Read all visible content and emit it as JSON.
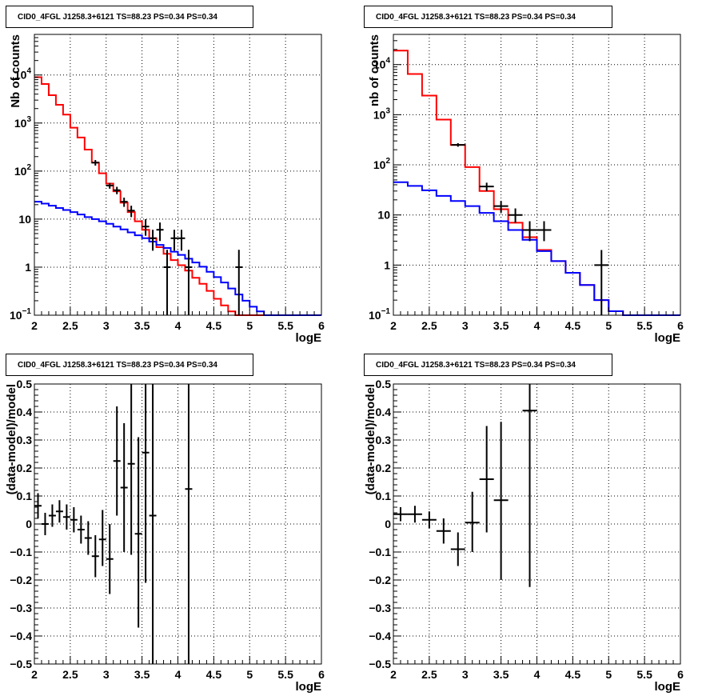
{
  "chart_data": [
    {
      "type": "line",
      "title": "CID0_4FGL J1258.3+6121 TS=88.23 PS=0.34 PS=0.34",
      "xlabel": "logE",
      "ylabel": "Nb of counts",
      "xlim": [
        2,
        6
      ],
      "ylim": [
        0.1,
        70000
      ],
      "y_scale": "log",
      "grid": true,
      "x_ticks": [
        "2",
        "2.5",
        "3",
        "3.5",
        "4",
        "4.5",
        "5",
        "5.5",
        "6"
      ],
      "bin_edges": [
        2.0,
        2.1,
        2.2,
        2.3,
        2.4,
        2.5,
        2.6,
        2.7,
        2.8,
        2.9,
        3.0,
        3.1,
        3.2,
        3.3,
        3.4,
        3.5,
        3.6,
        3.7,
        3.8,
        3.9,
        4.0,
        4.1,
        4.2,
        4.3,
        4.4,
        4.5,
        4.6,
        4.7,
        4.8,
        4.9,
        5.0,
        5.1,
        5.2,
        5.3,
        5.4,
        5.5,
        5.6,
        5.7,
        5.8,
        5.9,
        6.0
      ],
      "series": [
        {
          "color": "#ff0000",
          "values": [
            9000,
            6500,
            3800,
            2400,
            1500,
            800,
            500,
            280,
            150,
            90,
            55,
            38,
            22,
            14,
            9,
            6,
            4,
            2.6,
            1.9,
            1.4,
            1.1,
            0.85,
            0.6,
            0.45,
            0.32,
            0.22,
            0.16,
            0.12,
            0.1,
            0.1,
            0.1,
            0.1,
            0.1,
            0.1,
            0.1,
            0.1,
            0.1,
            0.1,
            0.1,
            0.1
          ]
        },
        {
          "color": "#0000ff",
          "values": [
            23,
            21,
            19,
            17,
            15.5,
            14,
            12.5,
            11,
            10,
            9,
            8,
            7,
            6.1,
            5.3,
            4.6,
            4,
            3.4,
            2.9,
            2.5,
            2.1,
            1.8,
            1.5,
            1.25,
            1.02,
            0.8,
            0.62,
            0.48,
            0.36,
            0.27,
            0.2,
            0.15,
            0.12,
            0.1,
            0.1,
            0.1,
            0.1,
            0.1,
            0.1,
            0.1,
            0.1
          ]
        }
      ],
      "points": [
        {
          "x": 2.85,
          "y": 150,
          "ylo": 130,
          "yhi": 170
        },
        {
          "x": 3.05,
          "y": 50,
          "ylo": 43,
          "yhi": 57
        },
        {
          "x": 3.15,
          "y": 40,
          "ylo": 33,
          "yhi": 47
        },
        {
          "x": 3.25,
          "y": 23,
          "ylo": 18,
          "yhi": 28
        },
        {
          "x": 3.35,
          "y": 15,
          "ylo": 11,
          "yhi": 19
        },
        {
          "x": 3.55,
          "y": 7,
          "ylo": 4.5,
          "yhi": 10
        },
        {
          "x": 3.65,
          "y": 4,
          "ylo": 2.2,
          "yhi": 6
        },
        {
          "x": 3.75,
          "y": 6,
          "ylo": 3.5,
          "yhi": 8.5
        },
        {
          "x": 3.85,
          "y": 1,
          "ylo": 0.1,
          "yhi": 2.3
        },
        {
          "x": 3.95,
          "y": 4,
          "ylo": 2.2,
          "yhi": 6
        },
        {
          "x": 4.05,
          "y": 4,
          "ylo": 2.2,
          "yhi": 6
        },
        {
          "x": 4.15,
          "y": 1,
          "ylo": 0.1,
          "yhi": 2.3
        },
        {
          "x": 4.85,
          "y": 1,
          "ylo": 0.1,
          "yhi": 2.3
        }
      ]
    },
    {
      "type": "line",
      "title": "CID0_4FGL J1258.3+6121 TS=88.23 PS=0.34 PS=0.34",
      "xlabel": "logE",
      "ylabel": "nb of counts",
      "xlim": [
        2,
        6
      ],
      "ylim": [
        0.1,
        40000
      ],
      "y_scale": "log",
      "grid": true,
      "x_ticks": [
        "2",
        "2.5",
        "3",
        "3.5",
        "4",
        "4.5",
        "5",
        "5.5",
        "6"
      ],
      "bin_edges": [
        2.0,
        2.2,
        2.4,
        2.6,
        2.8,
        3.0,
        3.2,
        3.4,
        3.6,
        3.8,
        4.0,
        4.2,
        4.4,
        4.6,
        4.8,
        5.0,
        5.2,
        5.4,
        5.6,
        5.8,
        6.0
      ],
      "series": [
        {
          "color": "#ff0000",
          "values": [
            19000,
            6500,
            2400,
            800,
            250,
            90,
            30,
            13,
            7,
            3.6,
            2,
            1.2,
            0.7,
            0.4,
            0.2,
            0.12,
            0.1,
            0.1,
            0.1,
            0.1
          ]
        },
        {
          "color": "#0000ff",
          "values": [
            45,
            38,
            31,
            24,
            19,
            15,
            11,
            7.5,
            5,
            3.2,
            1.9,
            1.2,
            0.7,
            0.4,
            0.2,
            0.12,
            0.1,
            0.1,
            0.1,
            0.1
          ]
        }
      ],
      "points": [
        {
          "x": 2.9,
          "y": 250,
          "ylo": 230,
          "yhi": 270
        },
        {
          "x": 3.3,
          "y": 37,
          "ylo": 30,
          "yhi": 44
        },
        {
          "x": 3.5,
          "y": 15,
          "ylo": 11,
          "yhi": 19
        },
        {
          "x": 3.7,
          "y": 10,
          "ylo": 7,
          "yhi": 13.5
        },
        {
          "x": 3.9,
          "y": 5,
          "ylo": 3,
          "yhi": 7.5
        },
        {
          "x": 4.1,
          "y": 5,
          "ylo": 3,
          "yhi": 7.5
        },
        {
          "x": 4.9,
          "y": 1,
          "ylo": 0.1,
          "yhi": 2
        }
      ]
    },
    {
      "type": "scatter",
      "title": "CID0_4FGL J1258.3+6121 TS=88.23 PS=0.34 PS=0.34",
      "xlabel": "logE",
      "ylabel": "(data-model)/model",
      "xlim": [
        2,
        6
      ],
      "ylim": [
        -0.5,
        0.5
      ],
      "grid": true,
      "x_ticks": [
        "2",
        "2.5",
        "3",
        "3.5",
        "4",
        "4.5",
        "5",
        "5.5",
        "6"
      ],
      "y_ticks": [
        "−0.5",
        "−0.4",
        "−0.3",
        "−0.2",
        "−0.1",
        "0",
        "0.1",
        "0.2",
        "0.3",
        "0.4",
        "0.5"
      ],
      "bin_width": 0.1,
      "points": [
        {
          "x": 2.05,
          "y": 0.065,
          "ylo": 0.02,
          "yhi": 0.11
        },
        {
          "x": 2.15,
          "y": 0.0,
          "ylo": -0.04,
          "yhi": 0.04
        },
        {
          "x": 2.25,
          "y": 0.03,
          "ylo": -0.01,
          "yhi": 0.07
        },
        {
          "x": 2.35,
          "y": 0.045,
          "ylo": 0.005,
          "yhi": 0.085
        },
        {
          "x": 2.45,
          "y": 0.025,
          "ylo": -0.02,
          "yhi": 0.07
        },
        {
          "x": 2.55,
          "y": 0.015,
          "ylo": -0.03,
          "yhi": 0.06
        },
        {
          "x": 2.65,
          "y": -0.02,
          "ylo": -0.07,
          "yhi": 0.03
        },
        {
          "x": 2.75,
          "y": -0.05,
          "ylo": -0.11,
          "yhi": 0.01
        },
        {
          "x": 2.85,
          "y": -0.115,
          "ylo": -0.19,
          "yhi": -0.04
        },
        {
          "x": 2.95,
          "y": -0.055,
          "ylo": -0.15,
          "yhi": 0.05
        },
        {
          "x": 3.05,
          "y": -0.125,
          "ylo": -0.25,
          "yhi": 0.0
        },
        {
          "x": 3.15,
          "y": 0.225,
          "ylo": 0.03,
          "yhi": 0.42
        },
        {
          "x": 3.25,
          "y": 0.13,
          "ylo": -0.1,
          "yhi": 0.36
        },
        {
          "x": 3.35,
          "y": 0.215,
          "ylo": -0.11,
          "yhi": 0.5
        },
        {
          "x": 3.45,
          "y": -0.035,
          "ylo": -0.37,
          "yhi": 0.31
        },
        {
          "x": 3.55,
          "y": 0.255,
          "ylo": -0.21,
          "yhi": 0.5
        },
        {
          "x": 3.65,
          "y": 0.03,
          "ylo": -0.5,
          "yhi": 0.5
        },
        {
          "x": 4.15,
          "y": 0.125,
          "ylo": -0.5,
          "yhi": 0.5
        }
      ]
    },
    {
      "type": "scatter",
      "title": "CID0_4FGL J1258.3+6121 TS=88.23 PS=0.34 PS=0.34",
      "xlabel": "logE",
      "ylabel": "(data-model)/model",
      "xlim": [
        2,
        6
      ],
      "ylim": [
        -0.5,
        0.5
      ],
      "grid": true,
      "x_ticks": [
        "2",
        "2.5",
        "3",
        "3.5",
        "4",
        "4.5",
        "5",
        "5.5",
        "6"
      ],
      "y_ticks": [
        "−0.5",
        "−0.4",
        "−0.3",
        "−0.2",
        "−0.1",
        "0",
        "0.1",
        "0.2",
        "0.3",
        "0.4",
        "0.5"
      ],
      "bin_width": 0.2,
      "points": [
        {
          "x": 2.1,
          "y": 0.035,
          "ylo": 0.01,
          "yhi": 0.06
        },
        {
          "x": 2.3,
          "y": 0.035,
          "ylo": 0.005,
          "yhi": 0.065
        },
        {
          "x": 2.5,
          "y": 0.015,
          "ylo": -0.015,
          "yhi": 0.045
        },
        {
          "x": 2.7,
          "y": -0.025,
          "ylo": -0.07,
          "yhi": 0.02
        },
        {
          "x": 2.9,
          "y": -0.09,
          "ylo": -0.15,
          "yhi": -0.03
        },
        {
          "x": 3.1,
          "y": 0.005,
          "ylo": -0.1,
          "yhi": 0.115
        },
        {
          "x": 3.3,
          "y": 0.16,
          "ylo": -0.03,
          "yhi": 0.35
        },
        {
          "x": 3.5,
          "y": 0.085,
          "ylo": -0.2,
          "yhi": 0.365
        },
        {
          "x": 3.9,
          "y": 0.405,
          "ylo": -0.225,
          "yhi": 0.5
        }
      ]
    }
  ]
}
